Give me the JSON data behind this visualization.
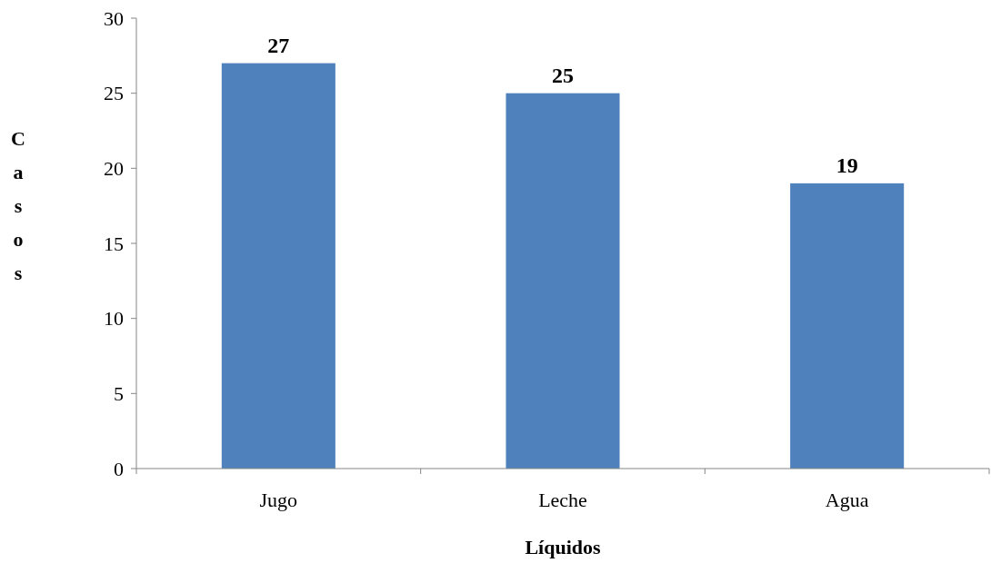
{
  "chart_data": {
    "type": "bar",
    "xlabel": "Líquidos",
    "ylabel": "Casos",
    "categories": [
      "Jugo",
      "Leche",
      "Agua"
    ],
    "values": [
      27,
      25,
      19
    ],
    "color": "#4f81bd",
    "ylim": [
      0,
      30
    ],
    "yticks": [
      0,
      5,
      10,
      15,
      20,
      25,
      30
    ],
    "grid": false,
    "data_labels": true
  }
}
